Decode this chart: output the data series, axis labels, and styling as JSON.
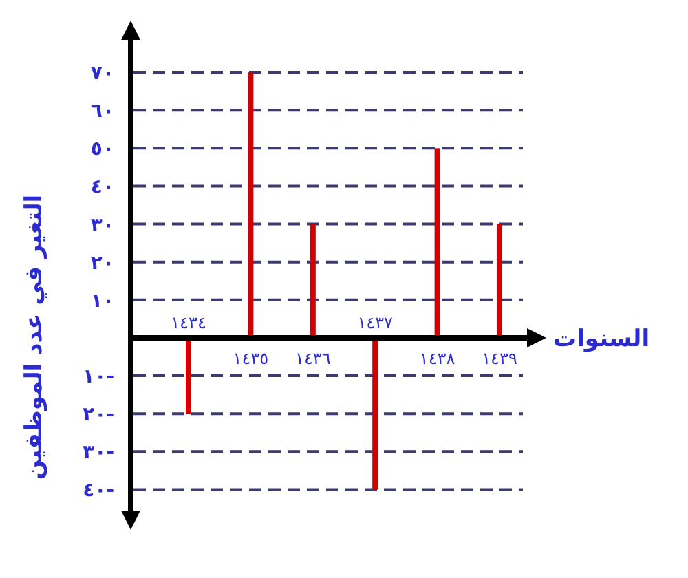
{
  "chart_data": {
    "type": "bar",
    "xlabel": "السنوات",
    "ylabel": "التغير في عدد الموظفين",
    "categories": [
      "١٤٣٤",
      "١٤٣٥",
      "١٤٣٦",
      "١٤٣٧",
      "١٤٣٨",
      "١٤٣٩"
    ],
    "values": [
      -20,
      70,
      30,
      -40,
      50,
      30
    ],
    "color": "#d40000",
    "ylim": [
      -47,
      80
    ],
    "yticks": [
      {
        "value": 70,
        "label": "٧٠"
      },
      {
        "value": 60,
        "label": "٦٠"
      },
      {
        "value": 50,
        "label": "٥٠"
      },
      {
        "value": 40,
        "label": "٤٠"
      },
      {
        "value": 30,
        "label": "٣٠"
      },
      {
        "value": 20,
        "label": "٢٠"
      },
      {
        "value": 10,
        "label": "١٠"
      },
      {
        "value": -10,
        "label": "١٠-"
      },
      {
        "value": -20,
        "label": "٢٠-"
      },
      {
        "value": -30,
        "label": "٣٠-"
      },
      {
        "value": -40,
        "label": "٤٠-"
      }
    ],
    "grid": "y"
  }
}
